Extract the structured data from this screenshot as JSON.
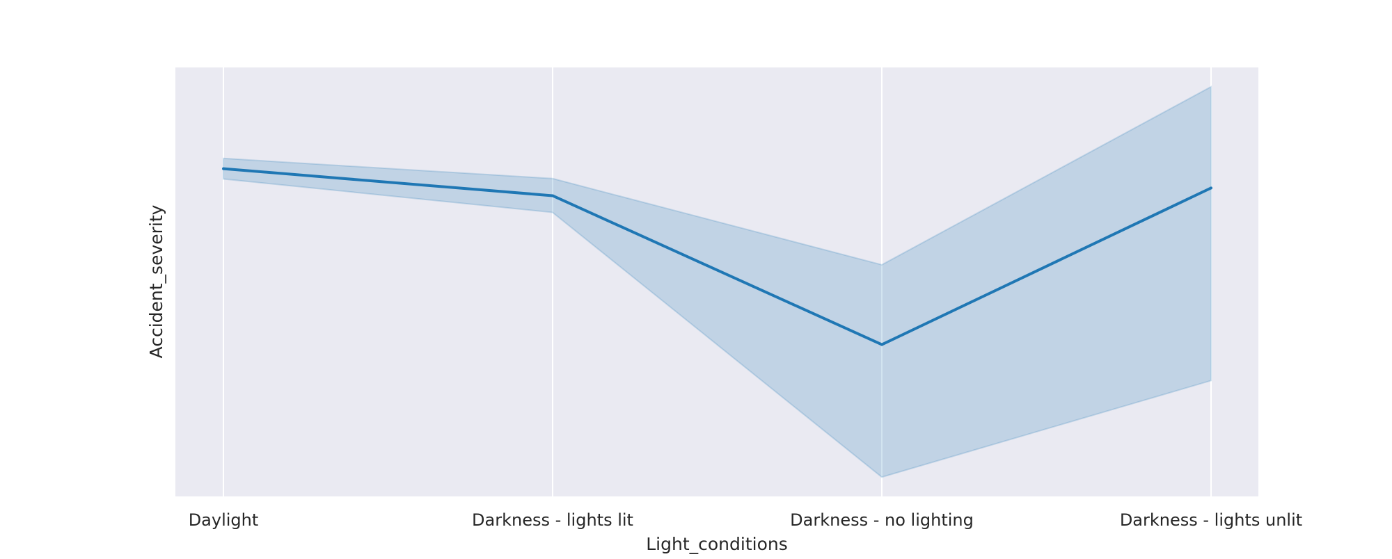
{
  "chart_data": {
    "type": "line",
    "title": "",
    "xlabel": "Light_conditions",
    "ylabel": "Accident_severity",
    "categories": [
      "Daylight",
      "Darkness - lights lit",
      "Darkness - no lighting",
      "Darkness - lights unlit"
    ],
    "series": [
      {
        "values": [
          0.764,
          0.701,
          0.354,
          0.719
        ],
        "ci_lower": [
          0.74,
          0.662,
          0.045,
          0.27
        ],
        "ci_upper": [
          0.788,
          0.741,
          0.54,
          0.955
        ]
      }
    ],
    "ylim": [
      0.0,
      1.0
    ],
    "y_ticks_shown": false,
    "grid": true,
    "grid_axis": "x",
    "legend": "none",
    "colors": {
      "line": "#1f77b4",
      "band": "#1f77b4",
      "plot_background": "#eaeaf2",
      "grid": "#ffffff"
    }
  }
}
